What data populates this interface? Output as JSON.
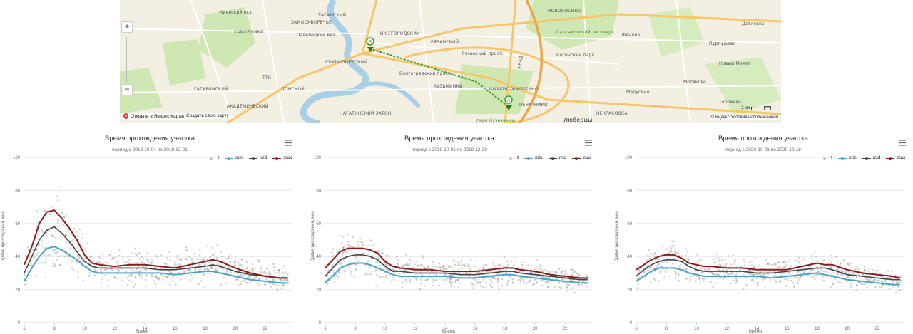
{
  "map": {
    "labels": [
      {
        "text": "Киевский вкз",
        "cls": ""
      },
      {
        "text": "ХАМОВНИКИ",
        "cls": ""
      },
      {
        "text": "Павелецкий вкз",
        "cls": ""
      },
      {
        "text": "ТАГАНСКИЙ",
        "cls": ""
      },
      {
        "text": "ЗАМОСКВОРЕЧЬЕ",
        "cls": ""
      },
      {
        "text": "НИЖЕГОРОДСКИЙ",
        "cls": ""
      },
      {
        "text": "РЯЗАНСКИЙ",
        "cls": ""
      },
      {
        "text": "ЮЖНОПОРТОВЫЙ",
        "cls": ""
      },
      {
        "text": "НОВОКОСИНО",
        "cls": ""
      },
      {
        "text": "Салтыковский лесопарк",
        "cls": "green"
      },
      {
        "text": "Косинский парк",
        "cls": "green"
      },
      {
        "text": "Фенино",
        "cls": ""
      },
      {
        "text": "Пурпушево",
        "cls": ""
      },
      {
        "text": "Датловка",
        "cls": ""
      },
      {
        "text": "Новый Милет",
        "cls": ""
      },
      {
        "text": "Марусино",
        "cls": ""
      },
      {
        "text": "Мотяково",
        "cls": ""
      },
      {
        "text": "Торбеево",
        "cls": ""
      },
      {
        "text": "ВЫХИНО-ЖУЛЕБИНО",
        "cls": ""
      },
      {
        "text": "КУЗЬМИНКИ",
        "cls": ""
      },
      {
        "text": "Волгоградский просп.",
        "cls": ""
      },
      {
        "text": "Рязанский просп.",
        "cls": ""
      },
      {
        "text": "парк Кузьминки",
        "cls": "green"
      },
      {
        "text": "Люберцы",
        "cls": ""
      },
      {
        "text": "НЕКРАСОВКА",
        "cls": ""
      },
      {
        "text": "ДОНСКОЙ",
        "cls": ""
      },
      {
        "text": "АКАДЕМИЧЕСКИЙ",
        "cls": ""
      },
      {
        "text": "НАГАТИНСКИЙ ЗАТОН",
        "cls": ""
      },
      {
        "text": "ГАГАРИНСКИЙ",
        "cls": ""
      },
      {
        "text": "ПЕЧАТНИКИ",
        "cls": ""
      },
      {
        "text": "ТТК",
        "cls": ""
      },
      {
        "text": "МКАД",
        "cls": ""
      }
    ],
    "zoom_in": "+",
    "zoom_out": "−",
    "open_maps": "Открыть в Яндекс.Картах",
    "create_map": "Создать свою карту",
    "copyright": "© Яндекс  Условия использования",
    "scale": "2 км",
    "pin_a": "A",
    "pin_b": "B",
    "colors": {
      "water": "#a9cfe6",
      "park": "#cfe8b3",
      "road": "#f6c667",
      "road_minor": "#ffffff",
      "pin": "#3a9a2a"
    }
  },
  "common": {
    "title": "Время прохождения участка",
    "ylabel": "Время прохождения, мин",
    "xlabel": "Время",
    "legend": [
      "t",
      "min",
      "mid",
      "max"
    ],
    "colors": {
      "t": "#808080",
      "min": "#4aa3c9",
      "mid": "#444444",
      "max": "#8b1a1a"
    }
  },
  "charts": [
    {
      "subtitle": "период с 2018-10-04 по 2018-12-21",
      "chart_data": {
        "type": "line",
        "x": [
          6,
          6.5,
          7,
          7.5,
          8,
          8.5,
          9,
          9.5,
          10,
          10.5,
          11,
          12,
          13,
          14,
          15,
          16,
          17,
          18,
          18.5,
          19,
          20,
          21,
          22,
          23,
          23.5
        ],
        "series": [
          {
            "name": "min",
            "values": [
              25,
              33,
              40,
              45,
              46,
              44,
              41,
              38,
              34,
              31,
              30,
              30,
              30,
              30,
              30,
              29,
              30,
              31,
              31,
              30,
              28,
              26,
              25,
              24,
              24
            ]
          },
          {
            "name": "mid",
            "values": [
              30,
              40,
              50,
              56,
              58,
              54,
              49,
              43,
              37,
              34,
              33,
              33,
              33,
              33,
              32,
              32,
              33,
              34,
              35,
              34,
              31,
              29,
              28,
              27,
              27
            ]
          },
          {
            "name": "max",
            "values": [
              35,
              46,
              60,
              67,
              68,
              63,
              57,
              50,
              41,
              36,
              35,
              34,
              35,
              35,
              34,
              33,
              35,
              37,
              38,
              37,
              33,
              30,
              28,
              27,
              27
            ]
          }
        ],
        "xlim": [
          6,
          23.8
        ],
        "ylim": [
          0,
          100
        ],
        "xticks": [
          6,
          8,
          10,
          12,
          14,
          16,
          18,
          20,
          22
        ],
        "yticks": [
          0,
          20,
          40,
          60,
          80,
          100
        ]
      }
    },
    {
      "subtitle": "период с 2019-10-01 по 2019-12-20",
      "chart_data": {
        "type": "line",
        "x": [
          6,
          6.5,
          7,
          7.5,
          8,
          8.5,
          9,
          9.5,
          10,
          10.5,
          11,
          12,
          13,
          14,
          15,
          16,
          17,
          18,
          18.5,
          19,
          20,
          21,
          22,
          23,
          23.5
        ],
        "series": [
          {
            "name": "min",
            "values": [
              24,
              28,
              33,
              35,
              36,
              36,
              35,
              33,
              31,
              29,
              28,
              28,
              28,
              28,
              27,
              27,
              28,
              29,
              29,
              28,
              27,
              26,
              25,
              24,
              24
            ]
          },
          {
            "name": "mid",
            "values": [
              28,
              33,
              38,
              40,
              41,
              41,
              40,
              38,
              34,
              31,
              31,
              30,
              30,
              30,
              29,
              29,
              30,
              31,
              31,
              30,
              29,
              28,
              27,
              26,
              26
            ]
          },
          {
            "name": "max",
            "values": [
              33,
              38,
              43,
              45,
              45,
              45,
              44,
              42,
              37,
              34,
              33,
              32,
              32,
              31,
              31,
              31,
              32,
              33,
              33,
              32,
              31,
              29,
              28,
              27,
              27
            ]
          }
        ],
        "xlim": [
          6,
          23.8
        ],
        "ylim": [
          0,
          100
        ],
        "xticks": [
          6,
          8,
          10,
          12,
          14,
          16,
          18,
          20,
          22
        ],
        "yticks": [
          0,
          20,
          40,
          60,
          80,
          100
        ]
      }
    },
    {
      "subtitle": "период с 2020-10-01 по 2020-12-18",
      "chart_data": {
        "type": "line",
        "x": [
          6,
          6.5,
          7,
          7.5,
          8,
          8.5,
          9,
          9.5,
          10,
          10.5,
          11,
          12,
          13,
          14,
          15,
          16,
          17,
          18,
          18.5,
          19,
          20,
          21,
          22,
          23,
          23.5
        ],
        "series": [
          {
            "name": "min",
            "values": [
              25,
              28,
              31,
              33,
              33,
              33,
              32,
              30,
              29,
              28,
              28,
              28,
              28,
              28,
              27,
              28,
              29,
              30,
              29,
              28,
              26,
              25,
              24,
              23,
              23
            ]
          },
          {
            "name": "mid",
            "values": [
              28,
              32,
              35,
              37,
              38,
              38,
              37,
              34,
              32,
              31,
              31,
              31,
              31,
              30,
              30,
              31,
              32,
              33,
              33,
              32,
              29,
              28,
              27,
              26,
              26
            ]
          },
          {
            "name": "max",
            "values": [
              32,
              35,
              38,
              40,
              41,
              41,
              39,
              36,
              35,
              34,
              34,
              33,
              33,
              32,
              32,
              32,
              34,
              36,
              35,
              35,
              32,
              30,
              29,
              28,
              27
            ]
          }
        ],
        "xlim": [
          6,
          23.8
        ],
        "ylim": [
          0,
          100
        ],
        "xticks": [
          6,
          8,
          10,
          12,
          14,
          16,
          18,
          20,
          22
        ],
        "yticks": [
          0,
          20,
          40,
          60,
          80,
          100
        ]
      }
    }
  ]
}
